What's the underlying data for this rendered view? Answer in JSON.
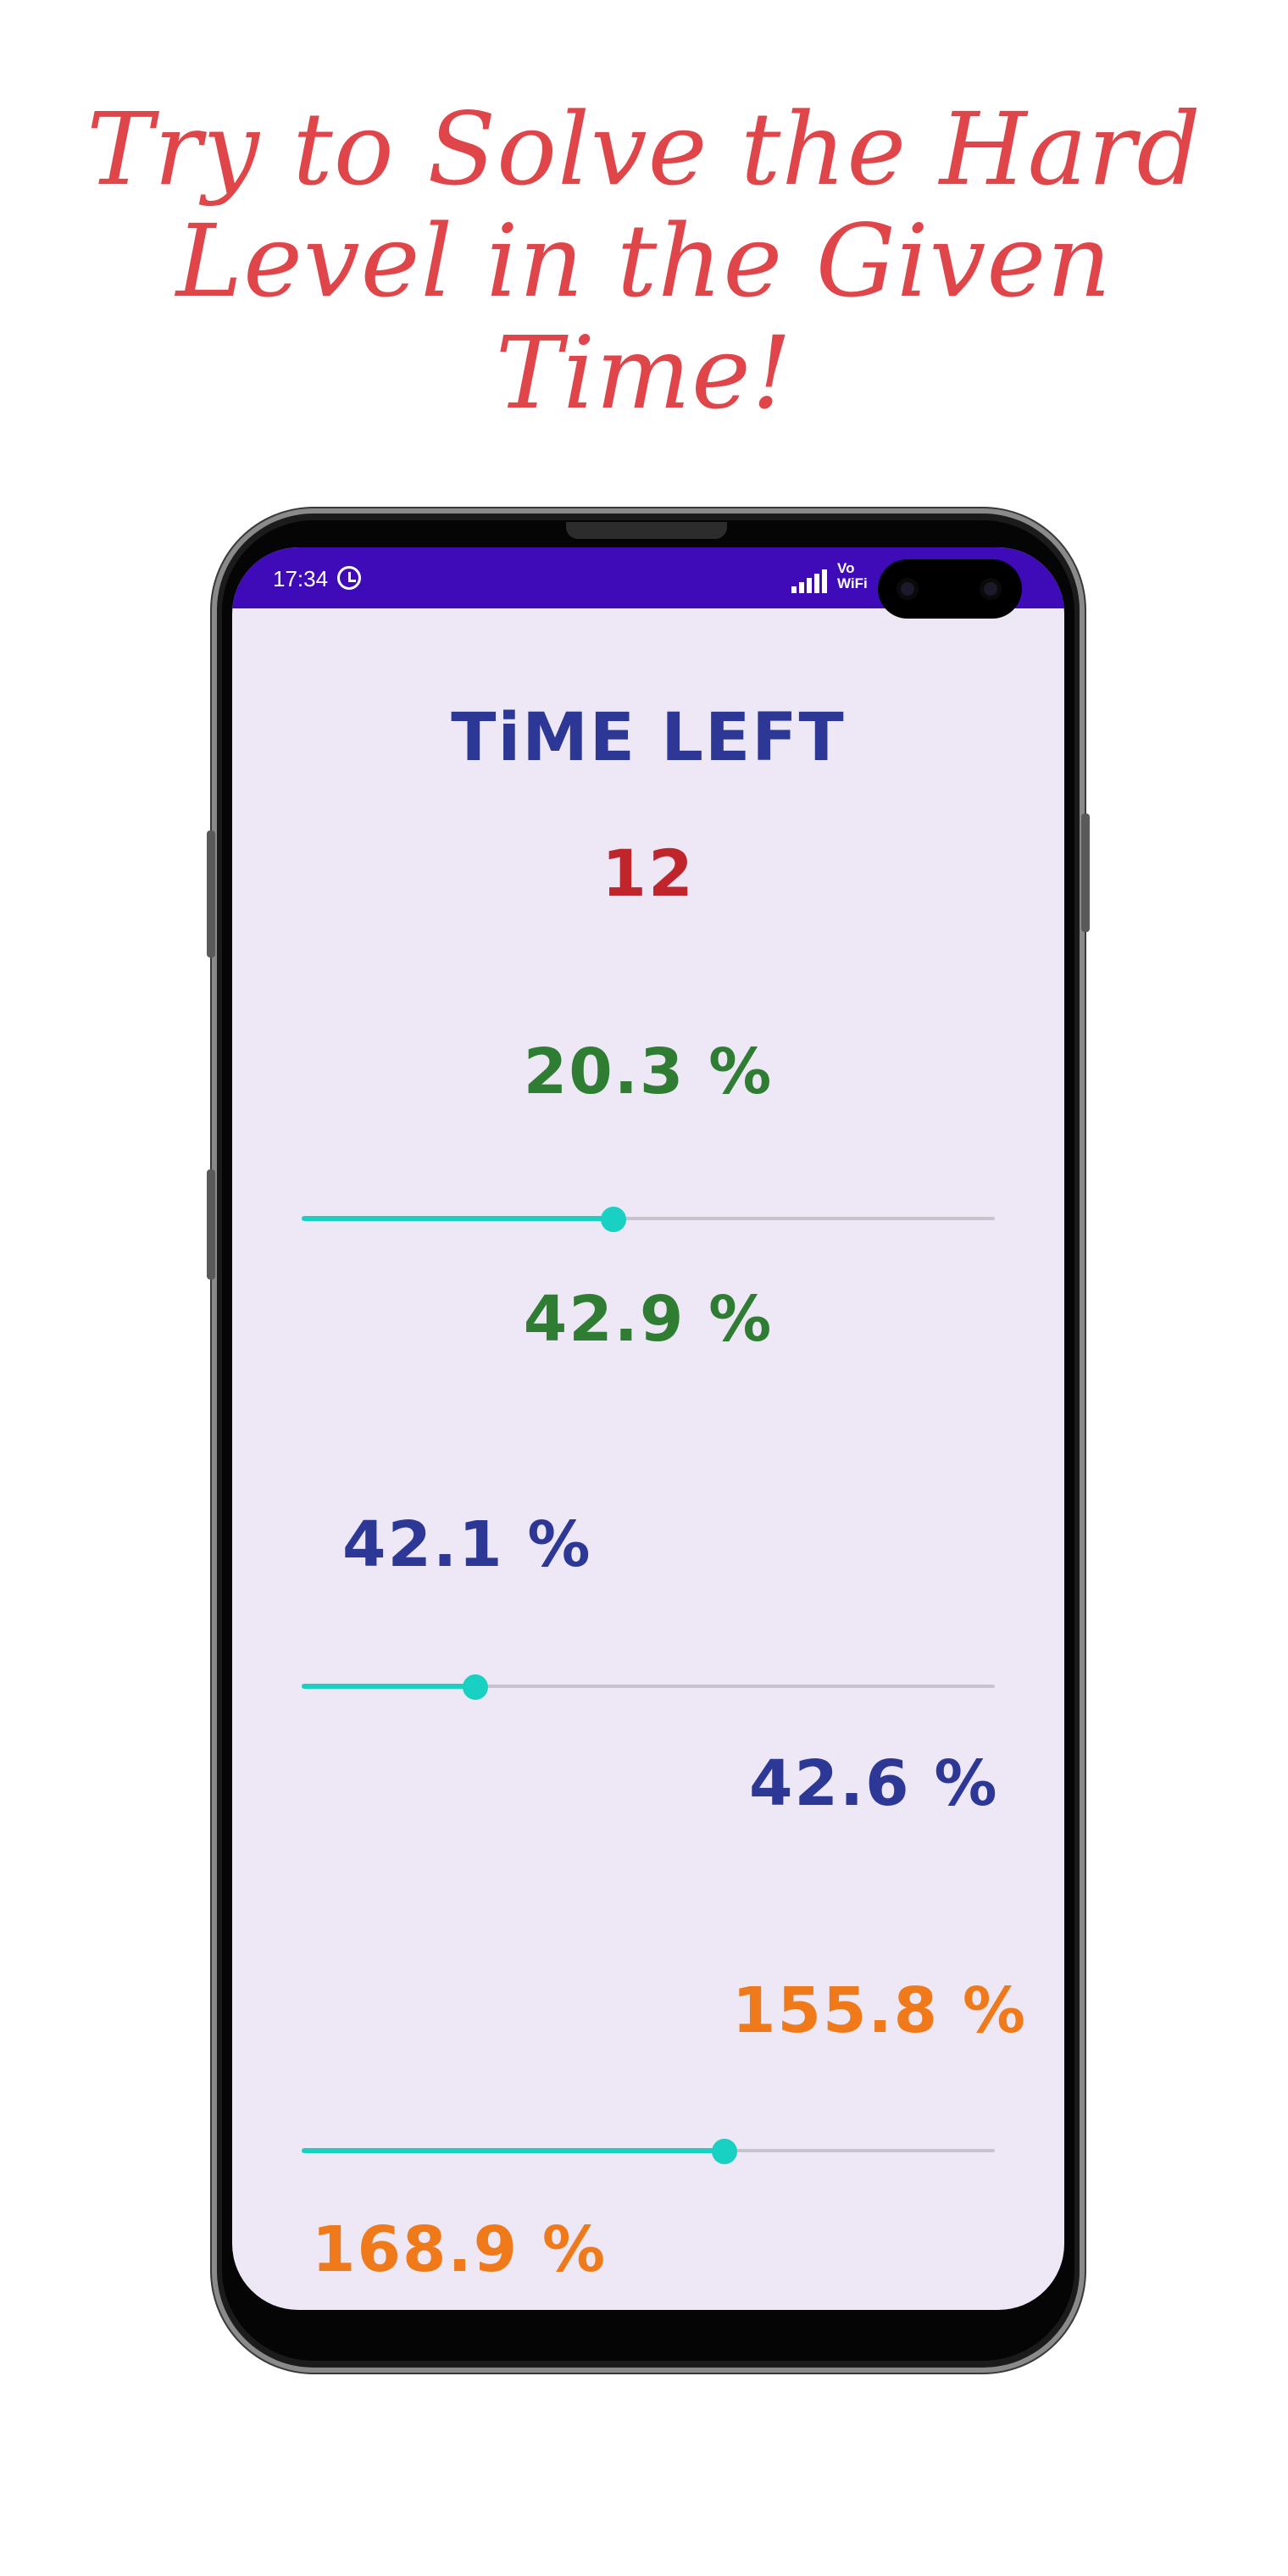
{
  "headline": {
    "line1": "Try to Solve the Hard",
    "line2": "Level in the Given",
    "line3": "Time!"
  },
  "statusbar": {
    "time": "17:34",
    "network_label_1": "Vo",
    "network_label_2": "WiFi"
  },
  "app": {
    "title": "TiME LEFT",
    "countdown": "12",
    "rows": [
      {
        "upper_value": "20.3 %",
        "slider_fraction": 0.45,
        "lower_value": "42.9 %",
        "color": "#2e7d32"
      },
      {
        "upper_value": "42.1 %",
        "slider_fraction": 0.25,
        "lower_value": "42.6 %",
        "color": "#2d3896"
      },
      {
        "upper_value": "155.8 %",
        "slider_fraction": 0.61,
        "lower_value": "168.9 %",
        "color": "#f07a1a"
      }
    ]
  },
  "colors": {
    "headline": "#e0454a",
    "statusbar": "#3f0ab8",
    "screen_bg": "#ede7f6",
    "slider_accent": "#19d1c2",
    "countdown": "#c0252b"
  }
}
